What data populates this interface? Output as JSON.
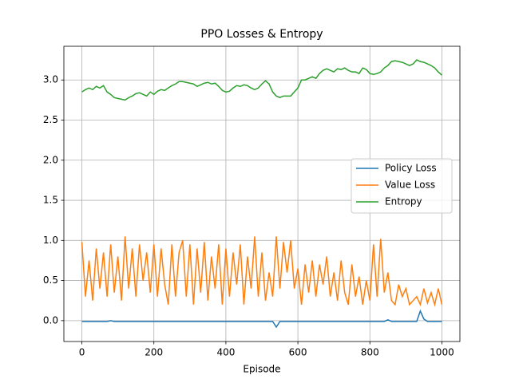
{
  "chart_data": {
    "type": "line",
    "title": "PPO Losses & Entropy",
    "x_label": "Episode",
    "x": [
      0,
      10,
      20,
      30,
      40,
      50,
      60,
      70,
      80,
      90,
      100,
      110,
      120,
      130,
      140,
      150,
      160,
      170,
      180,
      190,
      200,
      210,
      220,
      230,
      240,
      250,
      260,
      270,
      280,
      290,
      300,
      310,
      320,
      330,
      340,
      350,
      360,
      370,
      380,
      390,
      400,
      410,
      420,
      430,
      440,
      450,
      460,
      470,
      480,
      490,
      500,
      510,
      520,
      530,
      540,
      550,
      560,
      570,
      580,
      590,
      600,
      610,
      620,
      630,
      640,
      650,
      660,
      670,
      680,
      690,
      700,
      710,
      720,
      730,
      740,
      750,
      760,
      770,
      780,
      790,
      800,
      810,
      820,
      830,
      840,
      850,
      860,
      870,
      880,
      890,
      900,
      910,
      920,
      930,
      940,
      950,
      960,
      970,
      980,
      990,
      1000
    ],
    "series": [
      {
        "name": "Policy Loss",
        "color": "#1f77b4",
        "values": [
          -0.01,
          -0.01,
          -0.01,
          -0.01,
          -0.01,
          -0.01,
          -0.01,
          -0.01,
          0.0,
          -0.01,
          -0.01,
          -0.01,
          -0.01,
          -0.01,
          -0.01,
          -0.01,
          -0.01,
          -0.01,
          -0.01,
          -0.01,
          -0.01,
          -0.01,
          -0.01,
          -0.01,
          -0.01,
          -0.01,
          -0.01,
          -0.01,
          -0.01,
          -0.01,
          -0.01,
          -0.01,
          -0.01,
          -0.01,
          -0.01,
          -0.01,
          -0.01,
          -0.01,
          -0.01,
          -0.01,
          -0.01,
          -0.01,
          -0.01,
          -0.01,
          -0.01,
          -0.01,
          -0.01,
          -0.01,
          -0.01,
          -0.01,
          -0.01,
          -0.01,
          -0.01,
          -0.01,
          -0.08,
          -0.01,
          -0.01,
          -0.01,
          -0.01,
          -0.01,
          -0.01,
          -0.01,
          -0.01,
          -0.01,
          -0.01,
          -0.01,
          -0.01,
          -0.01,
          -0.01,
          -0.01,
          -0.01,
          -0.01,
          -0.01,
          -0.01,
          -0.01,
          -0.01,
          -0.01,
          -0.01,
          -0.01,
          -0.01,
          -0.01,
          -0.01,
          -0.01,
          -0.01,
          -0.01,
          0.01,
          -0.01,
          -0.01,
          -0.01,
          -0.01,
          -0.01,
          -0.01,
          -0.01,
          -0.01,
          0.12,
          0.02,
          -0.01,
          -0.01,
          -0.01,
          -0.01,
          -0.01
        ]
      },
      {
        "name": "Value Loss",
        "color": "#ff7f0e",
        "values": [
          0.98,
          0.3,
          0.75,
          0.25,
          0.9,
          0.4,
          0.85,
          0.3,
          0.95,
          0.35,
          0.8,
          0.25,
          1.05,
          0.4,
          0.9,
          0.3,
          0.95,
          0.5,
          0.85,
          0.35,
          0.95,
          0.3,
          0.9,
          0.45,
          0.2,
          0.95,
          0.3,
          0.85,
          1.0,
          0.3,
          0.95,
          0.2,
          0.9,
          0.35,
          0.98,
          0.25,
          0.8,
          0.4,
          0.95,
          0.2,
          0.9,
          0.3,
          0.85,
          0.45,
          0.95,
          0.2,
          0.8,
          0.4,
          1.05,
          0.3,
          0.85,
          0.25,
          0.6,
          0.3,
          1.05,
          0.4,
          0.98,
          0.6,
          1.0,
          0.4,
          0.65,
          0.2,
          0.7,
          0.35,
          0.75,
          0.3,
          0.7,
          0.45,
          0.8,
          0.3,
          0.6,
          0.25,
          0.75,
          0.35,
          0.2,
          0.7,
          0.3,
          0.55,
          0.2,
          0.5,
          0.25,
          0.95,
          0.3,
          1.02,
          0.35,
          0.6,
          0.25,
          0.2,
          0.45,
          0.3,
          0.4,
          0.2,
          0.25,
          0.3,
          0.2,
          0.4,
          0.22,
          0.35,
          0.2,
          0.4,
          0.2
        ]
      },
      {
        "name": "Entropy",
        "color": "#2ca02c",
        "values": [
          2.85,
          2.88,
          2.9,
          2.88,
          2.92,
          2.9,
          2.93,
          2.85,
          2.82,
          2.78,
          2.77,
          2.76,
          2.75,
          2.78,
          2.8,
          2.83,
          2.84,
          2.82,
          2.8,
          2.85,
          2.82,
          2.86,
          2.88,
          2.87,
          2.9,
          2.93,
          2.95,
          2.98,
          2.98,
          2.97,
          2.96,
          2.95,
          2.92,
          2.94,
          2.96,
          2.97,
          2.95,
          2.96,
          2.92,
          2.87,
          2.85,
          2.86,
          2.9,
          2.93,
          2.92,
          2.94,
          2.93,
          2.9,
          2.88,
          2.9,
          2.95,
          2.99,
          2.95,
          2.85,
          2.8,
          2.78,
          2.8,
          2.8,
          2.8,
          2.85,
          2.9,
          3.0,
          3.0,
          3.02,
          3.04,
          3.02,
          3.08,
          3.12,
          3.14,
          3.12,
          3.1,
          3.14,
          3.13,
          3.15,
          3.12,
          3.1,
          3.1,
          3.08,
          3.15,
          3.13,
          3.08,
          3.07,
          3.08,
          3.1,
          3.15,
          3.18,
          3.23,
          3.24,
          3.23,
          3.22,
          3.2,
          3.18,
          3.2,
          3.25,
          3.23,
          3.22,
          3.2,
          3.18,
          3.15,
          3.1,
          3.06
        ]
      }
    ],
    "xlim": [
      -50,
      1050
    ],
    "ylim": [
      -0.26,
      3.42
    ],
    "xticks": [
      0,
      200,
      400,
      600,
      800,
      1000
    ],
    "yticks": [
      {
        "value": 0,
        "label": "0.0"
      },
      {
        "value": 0.5,
        "label": "0.5"
      },
      {
        "value": 1,
        "label": "1.0"
      },
      {
        "value": 1.5,
        "label": "1.5"
      },
      {
        "value": 2,
        "label": "2.0"
      },
      {
        "value": 2.5,
        "label": "2.5"
      },
      {
        "value": 3,
        "label": "3.0"
      }
    ],
    "grid": true,
    "legend": "center right"
  }
}
